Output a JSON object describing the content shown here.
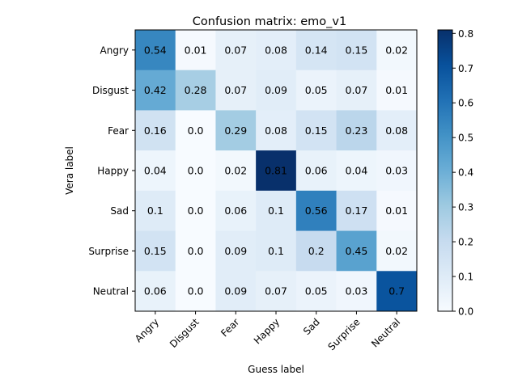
{
  "chart_data": {
    "type": "heatmap",
    "title": "Confusion matrix: emo_v1",
    "xlabel": "Guess label",
    "ylabel": "Vera label",
    "x_categories": [
      "Angry",
      "Disgust",
      "Fear",
      "Happy",
      "Sad",
      "Surprise",
      "Neutral"
    ],
    "y_categories": [
      "Angry",
      "Disgust",
      "Fear",
      "Happy",
      "Sad",
      "Surprise",
      "Neutral"
    ],
    "values": [
      [
        0.54,
        0.01,
        0.07,
        0.08,
        0.14,
        0.15,
        0.02
      ],
      [
        0.42,
        0.28,
        0.07,
        0.09,
        0.05,
        0.07,
        0.01
      ],
      [
        0.16,
        0.0,
        0.29,
        0.08,
        0.15,
        0.23,
        0.08
      ],
      [
        0.04,
        0.0,
        0.02,
        0.81,
        0.06,
        0.04,
        0.03
      ],
      [
        0.1,
        0.0,
        0.06,
        0.1,
        0.56,
        0.17,
        0.01
      ],
      [
        0.15,
        0.0,
        0.09,
        0.1,
        0.2,
        0.45,
        0.02
      ],
      [
        0.06,
        0.0,
        0.09,
        0.07,
        0.05,
        0.03,
        0.7
      ]
    ],
    "value_labels": [
      [
        "0.54",
        "0.01",
        "0.07",
        "0.08",
        "0.14",
        "0.15",
        "0.02"
      ],
      [
        "0.42",
        "0.28",
        "0.07",
        "0.09",
        "0.05",
        "0.07",
        "0.01"
      ],
      [
        "0.16",
        "0.0",
        "0.29",
        "0.08",
        "0.15",
        "0.23",
        "0.08"
      ],
      [
        "0.04",
        "0.0",
        "0.02",
        "0.81",
        "0.06",
        "0.04",
        "0.03"
      ],
      [
        "0.1",
        "0.0",
        "0.06",
        "0.1",
        "0.56",
        "0.17",
        "0.01"
      ],
      [
        "0.15",
        "0.0",
        "0.09",
        "0.1",
        "0.2",
        "0.45",
        "0.02"
      ],
      [
        "0.06",
        "0.0",
        "0.09",
        "0.07",
        "0.05",
        "0.03",
        "0.7"
      ]
    ],
    "colormap": "Blues",
    "colorbar": {
      "range": [
        0.0,
        0.81
      ],
      "ticks": [
        0.0,
        0.1,
        0.2,
        0.3,
        0.4,
        0.5,
        0.6,
        0.7,
        0.8
      ],
      "tick_labels": [
        "0.0",
        "0.1",
        "0.2",
        "0.3",
        "0.4",
        "0.5",
        "0.6",
        "0.7",
        "0.8"
      ]
    },
    "text_color_dark": "#000000",
    "text_color_light": "#ffffff"
  }
}
